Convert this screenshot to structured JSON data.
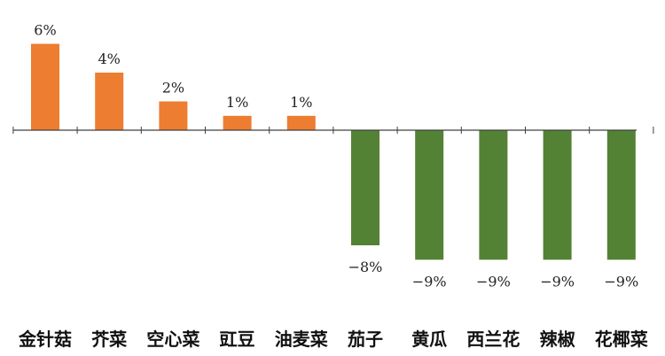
{
  "chart_data": {
    "type": "bar",
    "categories": [
      "金针菇",
      "芥菜",
      "空心菜",
      "豇豆",
      "油麦菜",
      "茄子",
      "黄瓜",
      "西兰花",
      "辣椒",
      "花椰菜"
    ],
    "values": [
      6,
      4,
      2,
      1,
      1,
      -8,
      -9,
      -9,
      -9,
      -9
    ],
    "data_labels": [
      "6%",
      "4%",
      "2%",
      "1%",
      "1%",
      "−8%",
      "−9%",
      "−9%",
      "−9%",
      "−9%"
    ],
    "title": "",
    "xlabel": "",
    "ylabel": "",
    "ylim": [
      -9,
      6
    ],
    "grid": false,
    "legend": "none",
    "colors": {
      "positive": "#ED7D31",
      "negative": "#548235",
      "axis": "#404040"
    }
  }
}
